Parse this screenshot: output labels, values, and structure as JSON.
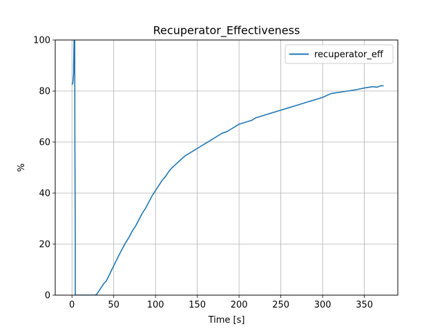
{
  "chart_data": {
    "type": "line",
    "title": "Recuperator_Effectiveness",
    "xlabel": "Time [s]",
    "ylabel": "%",
    "xlim": [
      -20,
      390
    ],
    "ylim": [
      0,
      100
    ],
    "xticks": [
      0,
      50,
      100,
      150,
      200,
      250,
      300,
      350
    ],
    "yticks": [
      0,
      20,
      40,
      60,
      80,
      100
    ],
    "grid": true,
    "legend_position": "top-right",
    "series": [
      {
        "name": "recuperator_eff",
        "color": "#1f77b4",
        "x": [
          0,
          1,
          1.5,
          2,
          2,
          2.2,
          2.5,
          3,
          3.3,
          3.5,
          4,
          4,
          4.3,
          28,
          30,
          32,
          35,
          38,
          41,
          44,
          47,
          50,
          53,
          56,
          60,
          64,
          68,
          72,
          76,
          80,
          84,
          88,
          92,
          96,
          100,
          104,
          108,
          112,
          116,
          120,
          125,
          130,
          135,
          140,
          145,
          150,
          155,
          160,
          165,
          170,
          175,
          180,
          185,
          190,
          195,
          200,
          205,
          210,
          215,
          220,
          230,
          240,
          250,
          260,
          270,
          280,
          290,
          300,
          310,
          320,
          330,
          340,
          350,
          360,
          365,
          370,
          373
        ],
        "y": [
          82.5,
          83,
          85,
          87,
          90,
          93,
          100,
          100,
          100,
          60,
          20,
          0,
          0,
          0,
          0.5,
          1.5,
          3,
          4.5,
          5.5,
          7.5,
          9.5,
          11.5,
          13.5,
          15.5,
          18,
          20.5,
          22.5,
          25,
          27,
          29.5,
          32,
          34,
          36.5,
          39,
          41,
          43,
          45,
          46.5,
          48.5,
          50,
          51.5,
          53,
          54.5,
          55.5,
          56.5,
          57.5,
          58.5,
          59.5,
          60.5,
          61.5,
          62.5,
          63.5,
          64,
          65,
          66,
          67,
          67.5,
          68,
          68.5,
          69.5,
          70.5,
          71.5,
          72.5,
          73.5,
          74.5,
          75.5,
          76.5,
          77.5,
          79,
          79.5,
          80,
          80.5,
          81.2,
          81.7,
          81.5,
          82.1,
          82
        ]
      }
    ]
  }
}
